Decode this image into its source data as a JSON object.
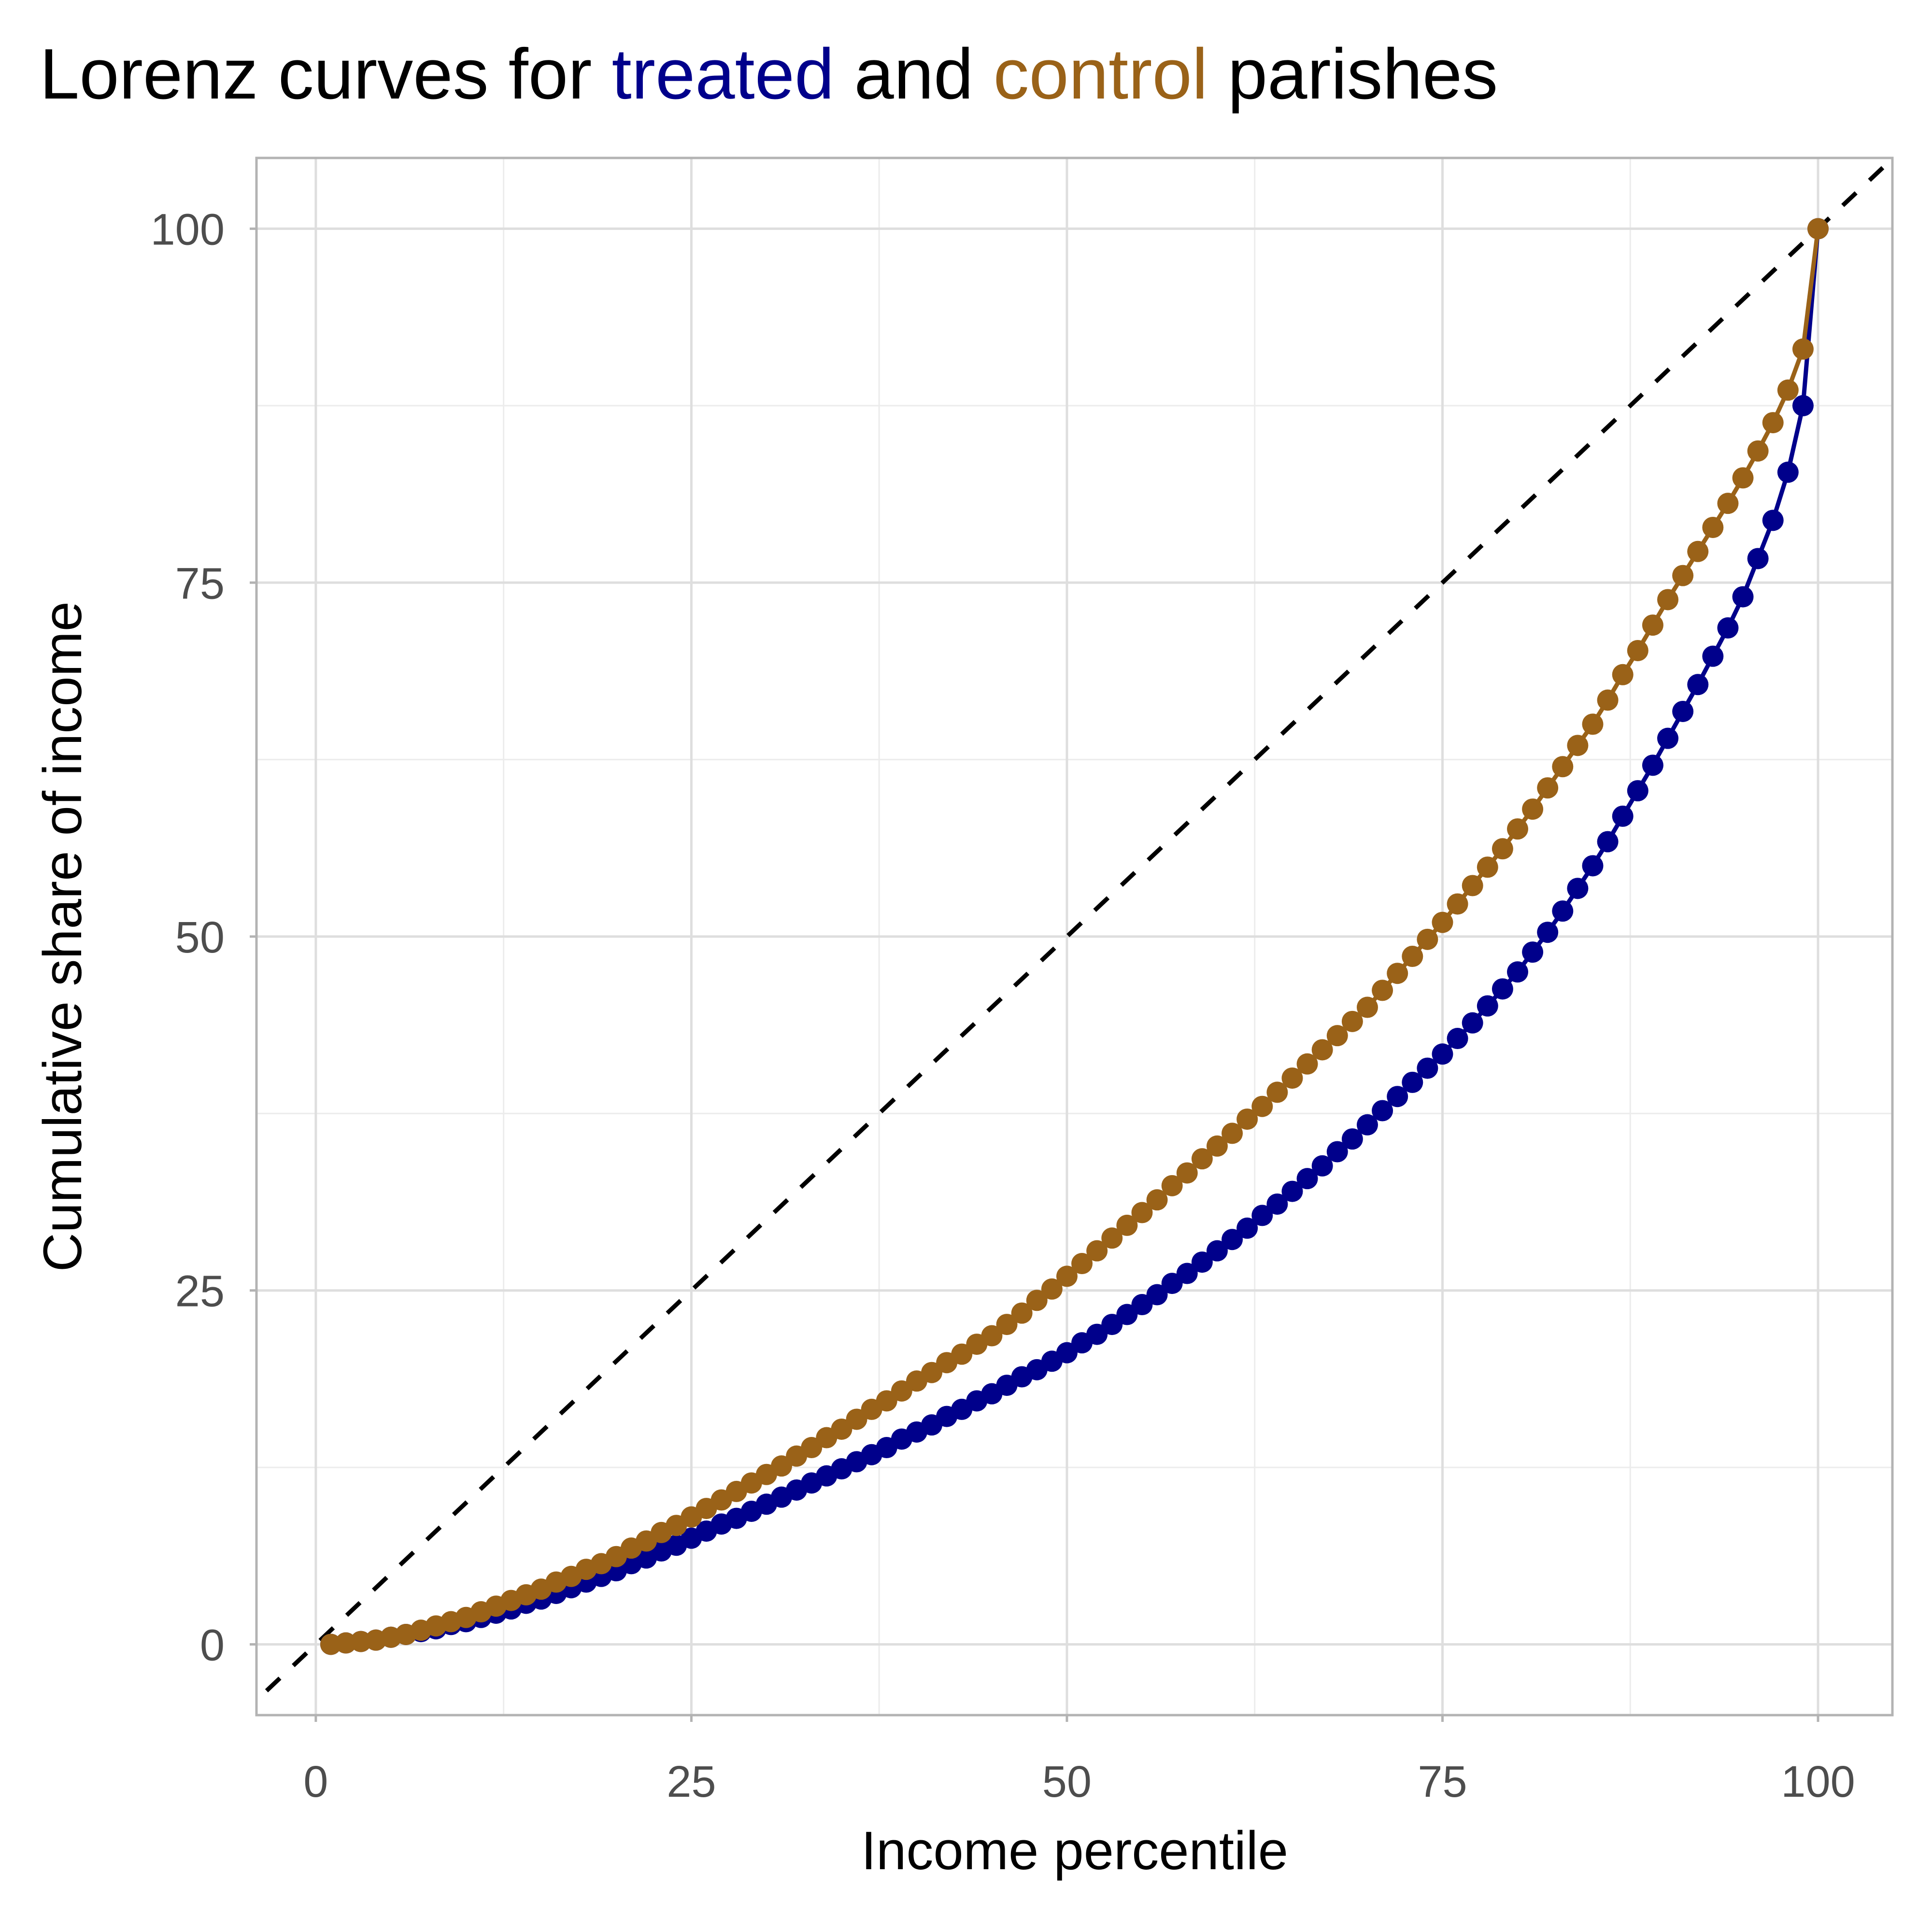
{
  "chart_data": {
    "type": "line",
    "title_parts": [
      {
        "text": "Lorenz curves for ",
        "color": "#000000"
      },
      {
        "text": "treated",
        "color": "#00008b"
      },
      {
        "text": " and ",
        "color": "#000000"
      },
      {
        "text": "control",
        "color": "#9a6218"
      },
      {
        "text": " parishes",
        "color": "#000000"
      }
    ],
    "x_label": "Income percentile",
    "y_label": "Cumulative share of income",
    "x": [
      1,
      2,
      3,
      4,
      5,
      6,
      7,
      8,
      9,
      10,
      11,
      12,
      13,
      14,
      15,
      16,
      17,
      18,
      19,
      20,
      21,
      22,
      23,
      24,
      25,
      26,
      27,
      28,
      29,
      30,
      31,
      32,
      33,
      34,
      35,
      36,
      37,
      38,
      39,
      40,
      41,
      42,
      43,
      44,
      45,
      46,
      47,
      48,
      49,
      50,
      51,
      52,
      53,
      54,
      55,
      56,
      57,
      58,
      59,
      60,
      61,
      62,
      63,
      64,
      65,
      66,
      67,
      68,
      69,
      70,
      71,
      72,
      73,
      74,
      75,
      76,
      77,
      78,
      79,
      80,
      81,
      82,
      83,
      84,
      85,
      86,
      87,
      88,
      89,
      90,
      91,
      92,
      93,
      94,
      95,
      96,
      97,
      98,
      99,
      100
    ],
    "series": [
      {
        "name": "treated",
        "color": "#00008b",
        "values": [
          0.0,
          0.1,
          0.2,
          0.3,
          0.5,
          0.7,
          0.9,
          1.1,
          1.4,
          1.6,
          1.9,
          2.2,
          2.5,
          2.9,
          3.2,
          3.6,
          4.0,
          4.4,
          4.8,
          5.2,
          5.7,
          6.1,
          6.6,
          7.0,
          7.5,
          8.0,
          8.5,
          8.9,
          9.4,
          9.9,
          10.4,
          10.9,
          11.4,
          11.9,
          12.4,
          12.9,
          13.4,
          13.9,
          14.5,
          15.0,
          15.5,
          16.1,
          16.6,
          17.2,
          17.7,
          18.3,
          18.9,
          19.4,
          20.0,
          20.6,
          21.3,
          21.9,
          22.6,
          23.3,
          24.0,
          24.7,
          25.5,
          26.2,
          27.0,
          27.8,
          28.6,
          29.4,
          30.3,
          31.1,
          32.0,
          32.9,
          33.8,
          34.8,
          35.7,
          36.7,
          37.7,
          38.7,
          39.7,
          40.7,
          41.7,
          42.8,
          43.9,
          45.1,
          46.3,
          47.5,
          48.9,
          50.3,
          51.8,
          53.4,
          55.0,
          56.7,
          58.5,
          60.3,
          62.1,
          64.0,
          65.9,
          67.8,
          69.8,
          71.8,
          74.0,
          76.7,
          79.4,
          82.8,
          87.5,
          100.0
        ]
      },
      {
        "name": "control",
        "color": "#9a6218",
        "values": [
          0.0,
          0.1,
          0.2,
          0.3,
          0.5,
          0.7,
          1.0,
          1.3,
          1.6,
          1.9,
          2.3,
          2.7,
          3.1,
          3.5,
          3.9,
          4.4,
          4.8,
          5.3,
          5.7,
          6.2,
          6.8,
          7.3,
          7.9,
          8.4,
          9.0,
          9.6,
          10.2,
          10.8,
          11.4,
          12.0,
          12.6,
          13.3,
          13.9,
          14.6,
          15.2,
          15.9,
          16.6,
          17.2,
          17.9,
          18.6,
          19.2,
          19.9,
          20.5,
          21.2,
          21.8,
          22.6,
          23.4,
          24.3,
          25.1,
          26.0,
          26.9,
          27.8,
          28.7,
          29.6,
          30.5,
          31.4,
          32.4,
          33.3,
          34.3,
          35.2,
          36.1,
          37.1,
          38.0,
          39.0,
          40.0,
          41.0,
          42.0,
          43.0,
          44.0,
          45.0,
          46.2,
          47.4,
          48.6,
          49.8,
          51.0,
          52.3,
          53.6,
          54.9,
          56.2,
          57.6,
          59.0,
          60.5,
          62.0,
          63.5,
          65.0,
          66.7,
          68.5,
          70.2,
          72.0,
          73.8,
          75.5,
          77.2,
          78.9,
          80.6,
          82.4,
          84.3,
          86.3,
          88.6,
          91.5,
          100.0
        ]
      }
    ],
    "xlim": [
      -3.95,
      104.95
    ],
    "ylim": [
      -5,
      105
    ],
    "xticks": [
      0,
      25,
      50,
      75,
      100
    ],
    "yticks": [
      0,
      25,
      50,
      75,
      100
    ],
    "x_minor_ticks": [
      12.5,
      37.5,
      62.5,
      87.5
    ],
    "y_minor_ticks": [
      12.5,
      37.5,
      62.5,
      87.5
    ],
    "grid": true,
    "diagonal_reference": true,
    "markers": true
  }
}
